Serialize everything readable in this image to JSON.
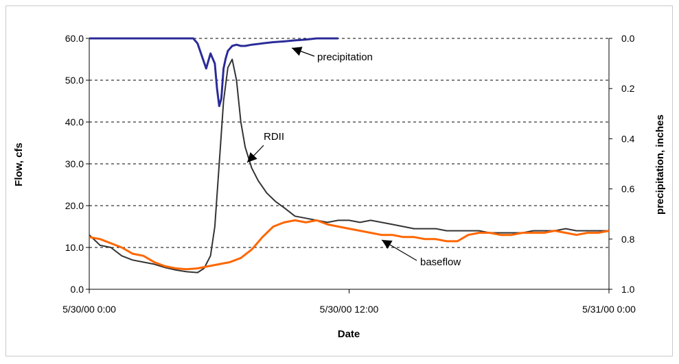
{
  "chart_data": {
    "type": "line",
    "title": "",
    "xlabel": "Date",
    "ylabel": "Flow, cfs",
    "y2label": "precipitation, inches",
    "x_ticks": [
      "5/30/00 0:00",
      "5/30/00 12:00",
      "5/31/00 0:00"
    ],
    "x_range_hours": [
      0,
      24
    ],
    "y_ticks": [
      "0.0",
      "10.0",
      "20.0",
      "30.0",
      "40.0",
      "50.0",
      "60.0"
    ],
    "ylim": [
      0,
      60
    ],
    "y2_ticks": [
      "0.0",
      "0.2",
      "0.4",
      "0.6",
      "0.8",
      "1.0"
    ],
    "y2lim": [
      0,
      1.0
    ],
    "y2_inverted": true,
    "grid": "horizontal dashed",
    "series": [
      {
        "name": "RDII",
        "color": "#333333",
        "axis": "left",
        "x": [
          0,
          0.5,
          1,
          1.5,
          2,
          2.5,
          3,
          3.5,
          4,
          4.5,
          5,
          5.3,
          5.6,
          5.8,
          6.0,
          6.2,
          6.4,
          6.6,
          6.8,
          7.0,
          7.2,
          7.5,
          7.8,
          8.2,
          8.6,
          9,
          9.5,
          10,
          10.5,
          11,
          11.5,
          12,
          12.5,
          13,
          13.5,
          14,
          14.5,
          15,
          15.5,
          16,
          16.5,
          17,
          17.5,
          18,
          18.5,
          19,
          19.5,
          20,
          20.5,
          21,
          21.5,
          22,
          22.5,
          23,
          23.5,
          24
        ],
        "y": [
          13,
          10.5,
          10,
          8,
          7,
          6.5,
          6,
          5.2,
          4.6,
          4.2,
          4.0,
          5.0,
          8,
          15,
          30,
          45,
          53,
          55,
          50,
          40,
          34,
          29,
          26,
          23,
          21,
          19.5,
          17.5,
          17,
          16.5,
          16,
          16.5,
          16.5,
          16,
          16.5,
          16,
          15.5,
          15,
          14.5,
          14.5,
          14.5,
          14,
          14,
          14,
          14,
          13.5,
          13.5,
          13.5,
          13.5,
          14,
          14,
          14,
          14.5,
          14,
          14,
          14,
          14
        ]
      },
      {
        "name": "baseflow",
        "color": "#ff6600",
        "axis": "left",
        "x": [
          0,
          0.5,
          1,
          1.5,
          2,
          2.5,
          3,
          3.5,
          4,
          4.5,
          5,
          5.5,
          6,
          6.5,
          7,
          7.5,
          8,
          8.5,
          9,
          9.5,
          10,
          10.5,
          11,
          11.5,
          12,
          12.5,
          13,
          13.5,
          14,
          14.5,
          15,
          15.5,
          16,
          16.5,
          17,
          17.5,
          18,
          18.5,
          19,
          19.5,
          20,
          20.5,
          21,
          21.5,
          22,
          22.5,
          23,
          23.5,
          24
        ],
        "y": [
          12.5,
          12,
          11,
          10,
          8.5,
          8,
          6.5,
          5.5,
          5,
          4.8,
          5,
          5.5,
          6,
          6.5,
          7.5,
          9.5,
          12.5,
          15,
          16,
          16.5,
          16,
          16.5,
          15.5,
          15,
          14.5,
          14,
          13.5,
          13,
          13,
          12.5,
          12.5,
          12,
          12,
          11.5,
          11.5,
          13,
          13.5,
          13.5,
          13,
          13,
          13.5,
          13.5,
          13.5,
          14,
          13.5,
          13,
          13.5,
          13.5,
          14
        ]
      },
      {
        "name": "precipitation",
        "color": "#2b2b9a",
        "axis": "right",
        "x": [
          0,
          1,
          2,
          3,
          4,
          4.8,
          5.0,
          5.2,
          5.4,
          5.6,
          5.8,
          5.9,
          6.0,
          6.1,
          6.2,
          6.3,
          6.4,
          6.6,
          6.8,
          7.0,
          7.2,
          7.5,
          8,
          8.5,
          9,
          9.5,
          10,
          10.5,
          11,
          11.5
        ],
        "y": [
          0,
          0,
          0,
          0,
          0,
          0,
          0.02,
          0.07,
          0.12,
          0.06,
          0.1,
          0.2,
          0.27,
          0.24,
          0.12,
          0.08,
          0.05,
          0.03,
          0.025,
          0.03,
          0.03,
          0.025,
          0.02,
          0.015,
          0.012,
          0.008,
          0.005,
          0,
          0,
          0
        ]
      }
    ],
    "annotations": [
      {
        "text": "precipitation",
        "points_to": "precipitation"
      },
      {
        "text": "RDII",
        "points_to": "RDII"
      },
      {
        "text": "baseflow",
        "points_to": "baseflow"
      }
    ]
  }
}
